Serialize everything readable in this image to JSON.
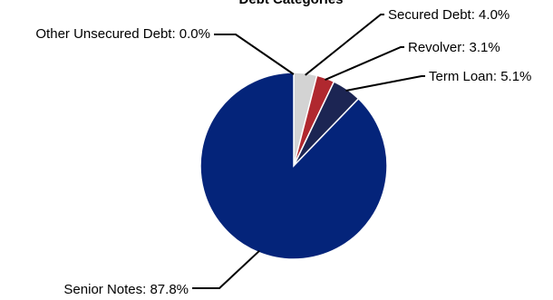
{
  "chart_data": {
    "type": "pie",
    "title": "Debt Categories",
    "slices": [
      {
        "name": "Secured Debt",
        "value": 4.0,
        "label": "Secured Debt: 4.0%",
        "color": "#d3d3d3"
      },
      {
        "name": "Revolver",
        "value": 3.1,
        "label": "Revolver: 3.1%",
        "color": "#b0282f"
      },
      {
        "name": "Term Loan",
        "value": 5.1,
        "label": "Term Loan: 5.1%",
        "color": "#1c2553"
      },
      {
        "name": "Senior Notes",
        "value": 87.8,
        "label": "Senior Notes: 87.8%",
        "color": "#04247a"
      },
      {
        "name": "Other Unsecured Debt",
        "value": 0.0,
        "label": "Other Unsecured Debt: 0.0%",
        "color": "#7f7f7f"
      }
    ]
  }
}
